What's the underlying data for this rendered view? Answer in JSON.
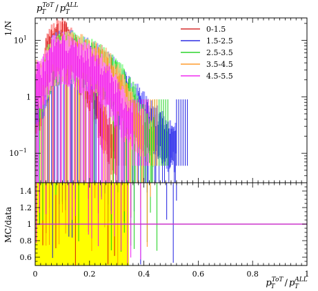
{
  "chart_data": [
    {
      "type": "histogram",
      "panel": "main",
      "title": "p_T^{ToT} / p_T^{ALL}",
      "title_parts": {
        "p": "p",
        "sub": "T",
        "sup1": "ToT",
        "slash": "/",
        "sup2": "ALL"
      },
      "ylabel": "1/N",
      "yscale": "log",
      "ylim": [
        0.03,
        25
      ],
      "xlim": [
        0,
        1
      ],
      "yticks": [
        {
          "value": 10,
          "label": "10",
          "exp": "1"
        },
        {
          "value": 1,
          "label": "1",
          "exp": ""
        },
        {
          "value": 0.1,
          "label": "10",
          "exp": "−1"
        }
      ],
      "legend_position": "top-right",
      "series": [
        {
          "name": "0-1.5",
          "color": "#cc0000",
          "band": "#ff8080",
          "x": [
            0.02,
            0.04,
            0.06,
            0.08,
            0.1,
            0.12,
            0.14,
            0.16,
            0.18,
            0.2,
            0.22,
            0.24,
            0.26,
            0.28
          ],
          "values": [
            0.8,
            5,
            8,
            10,
            12,
            9,
            6,
            4,
            3,
            2,
            1,
            0.5,
            0.3,
            0.15
          ]
        },
        {
          "name": "1.5-2.5",
          "color": "#0000dd",
          "band": "#8080ff",
          "x": [
            0.02,
            0.06,
            0.1,
            0.14,
            0.18,
            0.22,
            0.26,
            0.3,
            0.34,
            0.38,
            0.42,
            0.46,
            0.5
          ],
          "values": [
            1,
            5,
            7,
            6,
            5,
            4,
            3,
            2,
            1.2,
            0.7,
            0.4,
            0.25,
            0.15
          ]
        },
        {
          "name": "2.5-3.5",
          "color": "#00cc00",
          "band": "#80ff80",
          "x": [
            0.02,
            0.06,
            0.1,
            0.14,
            0.18,
            0.22,
            0.26,
            0.3,
            0.34,
            0.38,
            0.42
          ],
          "values": [
            1.5,
            5,
            6,
            6,
            5,
            4,
            3,
            2,
            1.2,
            0.5,
            0.2
          ]
        },
        {
          "name": "3.5-4.5",
          "color": "#ff8800",
          "band": "#ffc080",
          "x": [
            0.02,
            0.06,
            0.1,
            0.14,
            0.18,
            0.22,
            0.26,
            0.3,
            0.34,
            0.38
          ],
          "values": [
            2,
            5,
            6,
            6,
            5,
            4,
            3,
            1.8,
            0.8,
            0.3
          ]
        },
        {
          "name": "4.5-5.5",
          "color": "#ee00ee",
          "band": "#ff80ff",
          "x": [
            0.02,
            0.06,
            0.1,
            0.14,
            0.18,
            0.22,
            0.26,
            0.3,
            0.34
          ],
          "values": [
            2,
            5,
            6,
            5,
            4,
            3,
            2,
            1,
            0.4
          ]
        }
      ]
    },
    {
      "type": "ratio",
      "panel": "ratio",
      "ylabel": "MC/data",
      "ylim": [
        0.5,
        1.5
      ],
      "xlim": [
        0,
        1
      ],
      "yticks": [
        0.6,
        0.8,
        1,
        1.2,
        1.4
      ],
      "ytick_labels": [
        "0.6",
        "0.8",
        "1",
        "1.2",
        "1.4"
      ],
      "xticks": [
        0,
        0.2,
        0.4,
        0.6,
        0.8,
        1
      ],
      "xtick_labels": [
        "0",
        "0.2",
        "0.4",
        "0.6",
        "0.8",
        "1"
      ],
      "xlabel": "p_T^{ToT} / p_T^{ALL}",
      "xlabel_parts": {
        "p": "p",
        "sub": "T",
        "sup1": "ToT",
        "slash": "/",
        "sup2": "ALL"
      },
      "reference_value": 1,
      "reference_color": "#cc33cc",
      "band_color": "#ffff00",
      "band_xlim": [
        0,
        0.345
      ]
    }
  ]
}
